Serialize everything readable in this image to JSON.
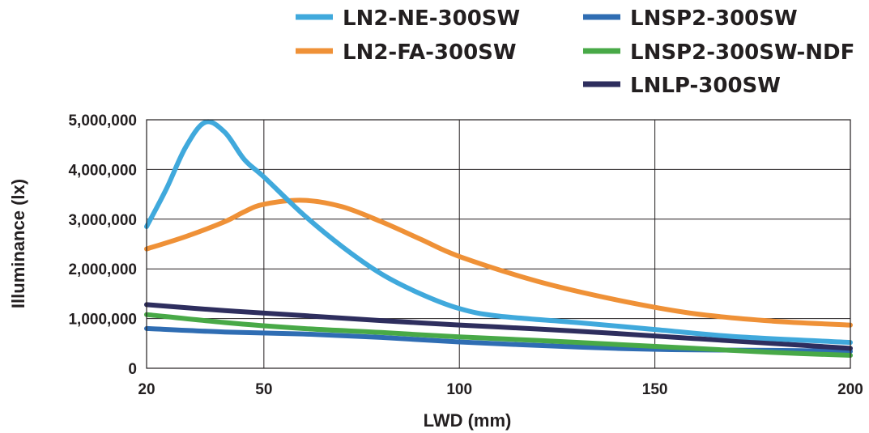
{
  "chart_data": {
    "type": "line",
    "title": "",
    "xlabel": "LWD (mm)",
    "ylabel": "Illuminance (lx)",
    "xlim": [
      20,
      200
    ],
    "ylim": [
      0,
      5000000
    ],
    "x_ticks": [
      20,
      50,
      100,
      150,
      200
    ],
    "x_tick_labels": [
      "20",
      "50",
      "100",
      "150",
      "200"
    ],
    "y_ticks": [
      0,
      1000000,
      2000000,
      3000000,
      4000000,
      5000000
    ],
    "y_tick_labels": [
      "0",
      "1,000,000",
      "2,000,000",
      "3,000,000",
      "4,000,000",
      "5,000,000"
    ],
    "grid": true,
    "legend_position": "top",
    "series": [
      {
        "name": "LN2-NE-300SW",
        "color": "#40a9dc",
        "points": [
          [
            20,
            2850000
          ],
          [
            25,
            3600000
          ],
          [
            30,
            4450000
          ],
          [
            35,
            4950000
          ],
          [
            40,
            4750000
          ],
          [
            45,
            4200000
          ],
          [
            50,
            3850000
          ],
          [
            60,
            3100000
          ],
          [
            70,
            2450000
          ],
          [
            80,
            1900000
          ],
          [
            90,
            1500000
          ],
          [
            100,
            1200000
          ],
          [
            110,
            1050000
          ],
          [
            130,
            920000
          ],
          [
            150,
            780000
          ],
          [
            170,
            640000
          ],
          [
            200,
            520000
          ]
        ]
      },
      {
        "name": "LN2-FA-300SW",
        "color": "#ef9137",
        "points": [
          [
            20,
            2400000
          ],
          [
            30,
            2650000
          ],
          [
            40,
            2950000
          ],
          [
            45,
            3150000
          ],
          [
            50,
            3300000
          ],
          [
            60,
            3380000
          ],
          [
            70,
            3250000
          ],
          [
            80,
            2950000
          ],
          [
            90,
            2600000
          ],
          [
            100,
            2250000
          ],
          [
            120,
            1750000
          ],
          [
            140,
            1380000
          ],
          [
            160,
            1100000
          ],
          [
            180,
            950000
          ],
          [
            200,
            870000
          ]
        ]
      },
      {
        "name": "LNSP2-300SW",
        "color": "#2f6db3",
        "points": [
          [
            20,
            800000
          ],
          [
            40,
            730000
          ],
          [
            60,
            690000
          ],
          [
            80,
            620000
          ],
          [
            100,
            530000
          ],
          [
            120,
            460000
          ],
          [
            140,
            400000
          ],
          [
            160,
            370000
          ],
          [
            180,
            360000
          ],
          [
            200,
            340000
          ]
        ]
      },
      {
        "name": "LNSP2-300SW-NDF",
        "color": "#48a947",
        "points": [
          [
            20,
            1080000
          ],
          [
            40,
            920000
          ],
          [
            60,
            800000
          ],
          [
            80,
            720000
          ],
          [
            100,
            630000
          ],
          [
            120,
            560000
          ],
          [
            140,
            480000
          ],
          [
            160,
            400000
          ],
          [
            180,
            320000
          ],
          [
            200,
            260000
          ]
        ]
      },
      {
        "name": "LNLP-300SW",
        "color": "#2e2e5e",
        "points": [
          [
            20,
            1280000
          ],
          [
            40,
            1160000
          ],
          [
            60,
            1060000
          ],
          [
            80,
            960000
          ],
          [
            100,
            870000
          ],
          [
            120,
            790000
          ],
          [
            140,
            700000
          ],
          [
            160,
            600000
          ],
          [
            180,
            500000
          ],
          [
            200,
            400000
          ]
        ]
      }
    ]
  }
}
